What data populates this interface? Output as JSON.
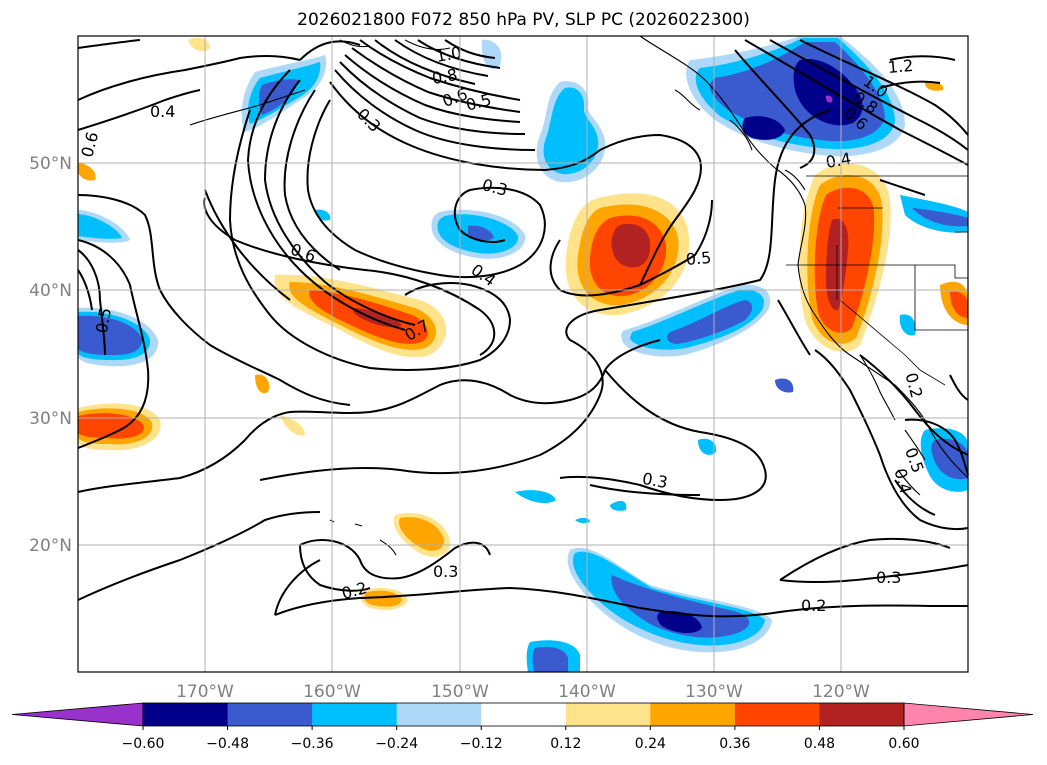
{
  "title": "2026021800 F072 850 hPa PV, SLP PC (2026022300)",
  "latitude_labels": [
    "50°N",
    "40°N",
    "30°N",
    "20°N"
  ],
  "longitude_labels": [
    "170°W",
    "160°W",
    "150°W",
    "140°W",
    "130°W",
    "120°W"
  ],
  "contour_labels": [
    "0.4",
    "0.6",
    "0.3",
    "1.0",
    "0.8",
    "0.6",
    "0.5",
    "1.2",
    "1.0",
    "0.8",
    "0.6",
    "0.4",
    "0.3",
    "0.6",
    "0.4",
    "0.5",
    "0.7",
    "0.5",
    "0.2",
    "0.5",
    "0.4",
    "0.3",
    "0.2",
    "0.3",
    "0.3",
    "0.2"
  ],
  "colorbar": {
    "tick_labels": [
      "−0.60",
      "−0.48",
      "−0.36",
      "−0.24",
      "−0.12",
      "0.12",
      "0.24",
      "0.36",
      "0.48",
      "0.60"
    ],
    "colors": [
      "#9932cc",
      "#00008b",
      "#3a5bd0",
      "#00bfff",
      "#add8f7",
      "#ffffff",
      "#ffe38a",
      "#ffa500",
      "#ff4500",
      "#b22222",
      "#ff85ad"
    ]
  },
  "colors": {
    "positive_pv": [
      "#ffe38a",
      "#ffa500",
      "#ff4500",
      "#b22222"
    ],
    "negative_pv": [
      "#add8f7",
      "#00bfff",
      "#3a5bd0",
      "#00008b"
    ],
    "grid": "#b0b0b0",
    "contours": "#000000"
  }
}
